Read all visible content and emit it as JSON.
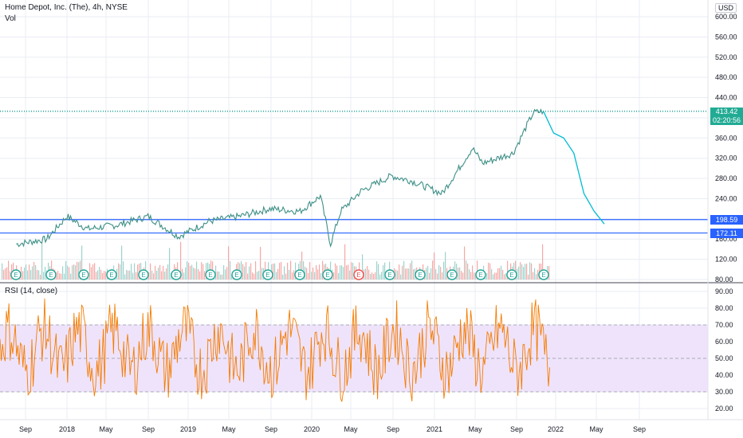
{
  "header": {
    "title": "Home Depot, Inc. (The), 4h, NYSE",
    "volume_label": "Vol",
    "currency": "USD",
    "rsi_label": "RSI (14, close)"
  },
  "price_badge": {
    "price": "413.42",
    "countdown": "02:20:56"
  },
  "levels": [
    {
      "value": 198.59,
      "label": "198.59",
      "color": "#2962ff"
    },
    {
      "value": 172.11,
      "label": "172.11",
      "color": "#2962ff"
    }
  ],
  "colors": {
    "up": "#26a69a",
    "down": "#ef5350",
    "projection": "#00bcd4",
    "rsi_line": "#f57c00",
    "rsi_band": "#efe3fb",
    "level": "#2962ff",
    "grid": "#e9edf3",
    "axis_text": "#131722"
  },
  "earnings_markers": [
    "E",
    "E",
    "E",
    "E",
    "E",
    "E",
    "E",
    "E",
    "E",
    "E",
    "E",
    "E",
    "E",
    "E",
    "E",
    "E",
    "E",
    "E"
  ],
  "chart_data": [
    {
      "type": "line",
      "name": "price",
      "x_ticks": [
        "Sep",
        "2018",
        "May",
        "Sep",
        "2019",
        "May",
        "Sep",
        "2020",
        "May",
        "Sep",
        "2021",
        "May",
        "Sep",
        "2022",
        "May",
        "Sep"
      ],
      "y_ticks": [
        600,
        560,
        520,
        480,
        440,
        400,
        360,
        320,
        280,
        240,
        200,
        160,
        120,
        80
      ],
      "ylim": [
        80,
        612
      ],
      "series": [
        {
          "x": [
            "2017-08",
            "2017-11",
            "2018-01",
            "2018-03",
            "2018-06",
            "2018-09",
            "2018-12",
            "2019-03",
            "2019-06",
            "2019-09",
            "2019-12",
            "2020-02",
            "2020-03",
            "2020-04",
            "2020-06",
            "2020-09",
            "2020-11",
            "2021-02",
            "2021-04",
            "2021-05",
            "2021-06",
            "2021-09",
            "2021-10",
            "2021-11",
            "2021-12"
          ],
          "y": [
            150,
            160,
            205,
            180,
            188,
            205,
            165,
            195,
            205,
            220,
            215,
            245,
            150,
            215,
            255,
            285,
            275,
            250,
            310,
            340,
            310,
            330,
            370,
            410,
            413
          ]
        }
      ],
      "projection": {
        "x": [
          "2021-12",
          "2022-01",
          "2022-02",
          "2022-03",
          "2022-04",
          "2022-05",
          "2022-06"
        ],
        "y": [
          413,
          370,
          360,
          330,
          250,
          215,
          190
        ]
      },
      "annotations": [
        "198.59",
        "172.11",
        "413.42"
      ]
    },
    {
      "type": "line",
      "name": "RSI",
      "y_ticks": [
        90,
        80,
        70,
        60,
        50,
        40,
        30,
        20
      ],
      "ylim": [
        14,
        93
      ],
      "band": [
        30,
        70
      ],
      "midline": 50
    }
  ]
}
